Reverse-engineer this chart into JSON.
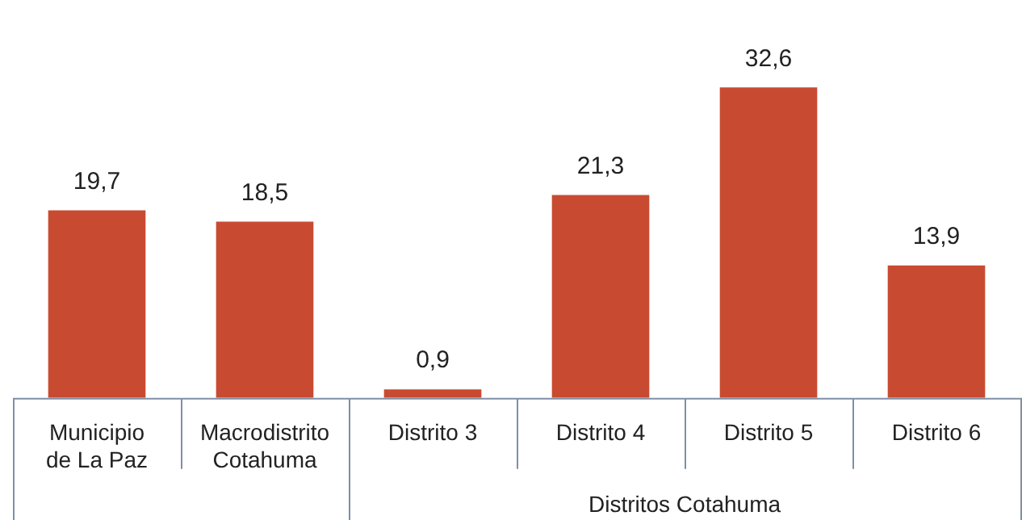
{
  "chart_data": {
    "type": "bar",
    "categories": [
      "Municipio de La Paz",
      "Macrodistrito Cotahuma",
      "Distrito 3",
      "Distrito 4",
      "Distrito 5",
      "Distrito 6"
    ],
    "values": [
      19.7,
      18.5,
      0.9,
      21.3,
      32.6,
      13.9
    ],
    "value_labels": [
      "19,7",
      "18,5",
      "0,9",
      "21,3",
      "32,6",
      "13,9"
    ],
    "color": "#c84b31",
    "annotations": [
      "Distritos Cotahuma"
    ]
  }
}
